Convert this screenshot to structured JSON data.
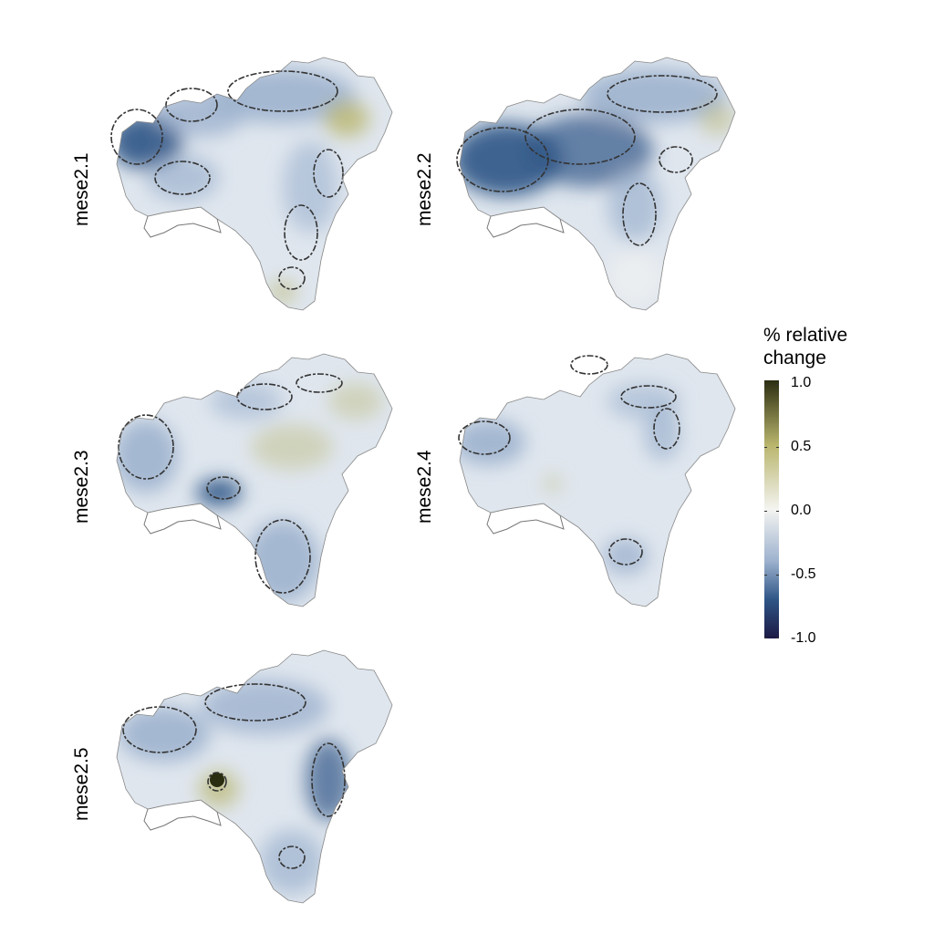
{
  "panels": [
    {
      "label": "mese2.1",
      "variant": 1
    },
    {
      "label": "mese2.2",
      "variant": 2
    },
    {
      "label": "mese2.3",
      "variant": 3
    },
    {
      "label": "mese2.4",
      "variant": 4
    },
    {
      "label": "mese2.5",
      "variant": 5
    }
  ],
  "legend": {
    "title_line1": "% relative",
    "title_line2": "change",
    "ticks": [
      "1.0",
      "0.5",
      "0.0",
      "-0.5",
      "-1.0"
    ],
    "colors": {
      "max": "#2b2d10",
      "high": "#b9b56d",
      "zero": "#f4f4f1",
      "low": "#9db2ce",
      "lower": "#2e5586",
      "min": "#1c1944"
    }
  },
  "contour_color": "#333333",
  "coast_color": "#777777"
}
